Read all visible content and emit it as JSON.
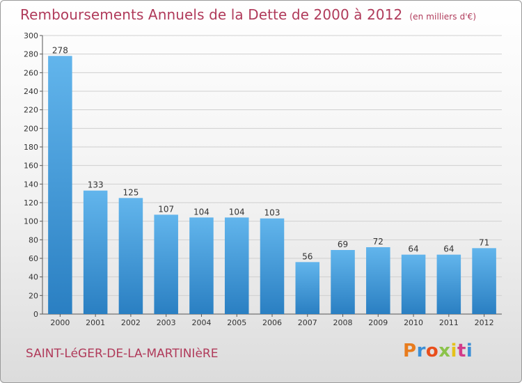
{
  "title": "Remboursements Annuels de la Dette de 2000 à 2012",
  "subtitle": "(en milliers d'€)",
  "commune": "SAINT-LéGER-DE-LA-MARTINIèRE",
  "brand": {
    "letters": [
      "P",
      "r",
      "o",
      "x",
      "i",
      "t",
      "i"
    ],
    "colors": [
      "#e87c1e",
      "#3b8fd6",
      "#e94e1b",
      "#8bc34a",
      "#e5c21a",
      "#d23c8a",
      "#3b8fd6"
    ]
  },
  "colors": {
    "bar": "#3f97db",
    "bar_light": "#62b5ec",
    "grid": "#cfcfcf",
    "axis": "#555555"
  },
  "chart_data": {
    "type": "bar",
    "title": "Remboursements Annuels de la Dette de 2000 à 2012",
    "ylabel": "en milliers d'€",
    "xlabel": "",
    "categories": [
      "2000",
      "2001",
      "2002",
      "2003",
      "2004",
      "2005",
      "2006",
      "2007",
      "2008",
      "2009",
      "2010",
      "2011",
      "2012"
    ],
    "values": [
      278,
      133,
      125,
      107,
      104,
      104,
      103,
      56,
      69,
      72,
      64,
      64,
      71
    ],
    "ylim": [
      0,
      300
    ],
    "yticks": [
      0,
      20,
      40,
      60,
      80,
      100,
      120,
      140,
      160,
      180,
      200,
      220,
      240,
      260,
      280,
      300
    ],
    "grid": true
  }
}
